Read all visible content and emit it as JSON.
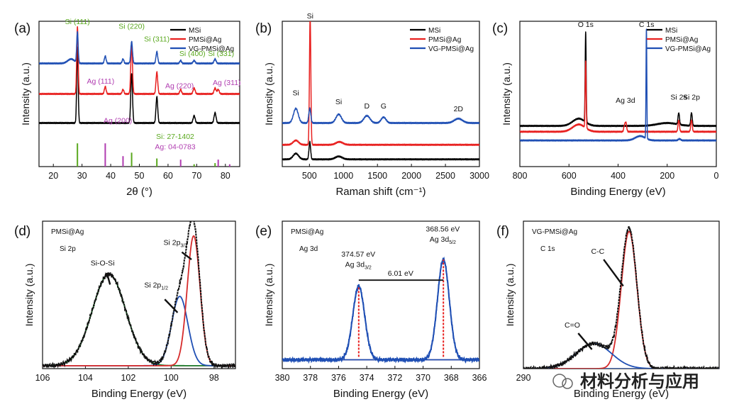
{
  "chart_data": [
    {
      "id": "a",
      "panel_label": "(a)",
      "type": "line",
      "xlabel": "2θ (°)",
      "ylabel": "Intensity (a.u.)",
      "xlim": [
        15,
        85
      ],
      "x_reversed": false,
      "xticks": [
        20,
        30,
        40,
        50,
        60,
        70,
        80
      ],
      "legend": {
        "position": "top-right",
        "entries": [
          {
            "name": "MSi",
            "color": "#000000"
          },
          {
            "name": "PMSi@Ag",
            "color": "#e8201f"
          },
          {
            "name": "VG-PMSi@Ag",
            "color": "#1f4fb4"
          }
        ]
      },
      "series": [
        {
          "name": "MSi",
          "color": "#000000",
          "baseline": 0.3,
          "peaks": [
            [
              28.4,
              0.52,
              0.25
            ],
            [
              47.3,
              0.34,
              0.3
            ],
            [
              56.1,
              0.18,
              0.3
            ],
            [
              69.1,
              0.05,
              0.35
            ],
            [
              76.4,
              0.07,
              0.35
            ]
          ]
        },
        {
          "name": "PMSi@Ag",
          "color": "#e8201f",
          "baseline": 0.5,
          "peaks": [
            [
              28.4,
              0.46,
              0.25
            ],
            [
              38.1,
              0.05,
              0.3
            ],
            [
              44.3,
              0.03,
              0.3
            ],
            [
              47.3,
              0.33,
              0.3
            ],
            [
              56.1,
              0.15,
              0.3
            ],
            [
              64.4,
              0.03,
              0.3
            ],
            [
              69.1,
              0.04,
              0.35
            ],
            [
              76.4,
              0.04,
              0.35
            ],
            [
              77.5,
              0.03,
              0.35
            ]
          ]
        },
        {
          "name": "VG-PMSi@Ag",
          "color": "#1f4fb4",
          "baseline": 0.71,
          "peaks": [
            [
              26.2,
              0.03,
              1.2
            ],
            [
              28.4,
              0.21,
              0.25
            ],
            [
              38.1,
              0.05,
              0.3
            ],
            [
              44.3,
              0.03,
              0.3
            ],
            [
              47.3,
              0.15,
              0.3
            ],
            [
              56.1,
              0.08,
              0.3
            ],
            [
              64.4,
              0.02,
              0.3
            ],
            [
              69.1,
              0.02,
              0.35
            ],
            [
              76.4,
              0.03,
              0.35
            ]
          ]
        }
      ],
      "reference_bars": [
        {
          "card": "Si: 27-1402",
          "color": "#5aa81e",
          "positions": [
            28.4,
            47.3,
            56.1,
            69.1,
            76.4
          ],
          "heights": [
            1.0,
            0.6,
            0.35,
            0.1,
            0.15
          ]
        },
        {
          "card": "Ag: 04-0783",
          "color": "#b03cb0",
          "positions": [
            38.1,
            44.3,
            64.4,
            77.5,
            81.5
          ],
          "heights": [
            1.0,
            0.45,
            0.3,
            0.3,
            0.1
          ]
        }
      ],
      "annotations": [
        {
          "text": "Si (111)",
          "color": "#5aa81e",
          "x": 28.4,
          "y": 0.98
        },
        {
          "text": "Si (220)",
          "color": "#5aa81e",
          "x": 47.3,
          "y": 0.95
        },
        {
          "text": "Si (311)",
          "color": "#5aa81e",
          "x": 56.1,
          "y": 0.86
        },
        {
          "text": "Si (400)",
          "color": "#5aa81e",
          "x": 68.5,
          "y": 0.76
        },
        {
          "text": "Si (331)",
          "color": "#5aa81e",
          "x": 78.5,
          "y": 0.76
        },
        {
          "text": "Ag (111)",
          "color": "#b03cb0",
          "x": 36.5,
          "y": 0.57
        },
        {
          "text": "Ag (220)",
          "color": "#b03cb0",
          "x": 64.0,
          "y": 0.54
        },
        {
          "text": "Ag (311)",
          "color": "#b03cb0",
          "x": 80.5,
          "y": 0.56
        },
        {
          "text": "Ag (200)",
          "color": "#b03cb0",
          "x": 42.5,
          "y": 0.3
        },
        {
          "text": "Si: 27-1402",
          "color": "#5aa81e",
          "x": 62.5,
          "y": 0.19
        },
        {
          "text": "Ag: 04-0783",
          "color": "#b03cb0",
          "x": 62.5,
          "y": 0.12
        }
      ]
    },
    {
      "id": "b",
      "panel_label": "(b)",
      "type": "line",
      "xlabel": "Raman shift (cm⁻¹)",
      "ylabel": "Intensity (a.u.)",
      "xlim": [
        100,
        3000
      ],
      "x_reversed": false,
      "xticks": [
        500,
        1000,
        1500,
        2000,
        2500,
        3000
      ],
      "legend": {
        "position": "top-right",
        "entries": [
          {
            "name": "MSi",
            "color": "#000000"
          },
          {
            "name": "PMSi@Ag",
            "color": "#e8201f"
          },
          {
            "name": "VG-PMSi@Ag",
            "color": "#1f4fb4"
          }
        ]
      },
      "series": [
        {
          "name": "MSi",
          "color": "#000000",
          "baseline": 0.05,
          "peaks": [
            [
              300,
              0.04,
              40
            ],
            [
              505,
              0.12,
              12
            ],
            [
              930,
              0.02,
              50
            ]
          ]
        },
        {
          "name": "PMSi@Ag",
          "color": "#e8201f",
          "baseline": 0.15,
          "peaks": [
            [
              300,
              0.03,
              40
            ],
            [
              510,
              0.88,
              10
            ],
            [
              940,
              0.02,
              50
            ]
          ]
        },
        {
          "name": "VG-PMSi@Ag",
          "color": "#1f4fb4",
          "baseline": 0.3,
          "peaks": [
            [
              300,
              0.1,
              35
            ],
            [
              505,
              0.1,
              15
            ],
            [
              930,
              0.06,
              40
            ],
            [
              1345,
              0.05,
              45
            ],
            [
              1590,
              0.04,
              35
            ],
            [
              2690,
              0.03,
              60
            ]
          ]
        }
      ],
      "annotations": [
        {
          "text": "Si",
          "color": "#111111",
          "x": 510,
          "y": 1.02
        },
        {
          "text": "Si",
          "color": "#111111",
          "x": 300,
          "y": 0.49
        },
        {
          "text": "Si",
          "color": "#111111",
          "x": 930,
          "y": 0.43
        },
        {
          "text": "D",
          "color": "#111111",
          "x": 1345,
          "y": 0.4
        },
        {
          "text": "G",
          "color": "#111111",
          "x": 1590,
          "y": 0.4
        },
        {
          "text": "2D",
          "color": "#111111",
          "x": 2690,
          "y": 0.38
        }
      ]
    },
    {
      "id": "c",
      "panel_label": "(c)",
      "type": "line",
      "xlabel": "Binding Energy (eV)",
      "ylabel": "Intensity (a.u.)",
      "xlim": [
        800,
        0
      ],
      "x_reversed": true,
      "xticks": [
        800,
        600,
        400,
        200,
        0
      ],
      "legend": {
        "position": "top-right",
        "entries": [
          {
            "name": "MSi",
            "color": "#000000"
          },
          {
            "name": "PMSi@Ag",
            "color": "#e8201f"
          },
          {
            "name": "VG-PMSi@Ag",
            "color": "#1f4fb4"
          }
        ]
      },
      "series": [
        {
          "name": "MSi",
          "color": "#000000",
          "baseline": 0.28,
          "peaks": [
            [
              532,
              0.62,
              2
            ],
            [
              560,
              0.05,
              25
            ],
            [
              153,
              0.08,
              3
            ],
            [
              101,
              0.09,
              3
            ],
            [
              200,
              0.02,
              40
            ]
          ]
        },
        {
          "name": "PMSi@Ag",
          "color": "#e8201f",
          "baseline": 0.24,
          "peaks": [
            [
              532,
              0.46,
              2
            ],
            [
              560,
              0.05,
              25
            ],
            [
              368,
              0.06,
              3
            ],
            [
              374,
              0.04,
              3
            ],
            [
              153,
              0.08,
              3
            ],
            [
              101,
              0.08,
              3
            ]
          ]
        },
        {
          "name": "VG-PMSi@Ag",
          "color": "#1f4fb4",
          "baseline": 0.18,
          "peaks": [
            [
              284.6,
              0.76,
              1.6
            ],
            [
              310,
              0.03,
              20
            ],
            [
              150,
              0.01,
              5
            ]
          ]
        }
      ],
      "annotations": [
        {
          "text": "O 1s",
          "color": "#111111",
          "x": 532,
          "y": 0.96
        },
        {
          "text": "C 1s",
          "color": "#111111",
          "x": 284,
          "y": 0.96
        },
        {
          "text": "Ag 3d",
          "color": "#111111",
          "x": 370,
          "y": 0.44
        },
        {
          "text": "Si 2s",
          "color": "#111111",
          "x": 153,
          "y": 0.46
        },
        {
          "text": "Si 2p",
          "color": "#111111",
          "x": 101,
          "y": 0.46
        }
      ]
    },
    {
      "id": "d",
      "panel_label": "(d)",
      "type": "line",
      "sample": "PMSi@Ag",
      "core_level": "Si 2p",
      "xlabel": "Binding Energy (eV)",
      "ylabel": "Intensity (a.u.)",
      "xlim": [
        106,
        97
      ],
      "x_reversed": true,
      "xticks": [
        106,
        104,
        102,
        100,
        98
      ],
      "background": 0.02,
      "components": [
        {
          "name": "Si-O-Si",
          "center": 102.9,
          "amplitude": 0.62,
          "sigma": 0.78,
          "color": "#1c7c2c",
          "fill": "#2e7d32"
        },
        {
          "name": "Si 2p1/2",
          "center": 99.6,
          "amplitude": 0.47,
          "sigma": 0.38,
          "color": "#1f4fb4"
        },
        {
          "name": "Si 2p3/2",
          "center": 98.95,
          "amplitude": 0.88,
          "sigma": 0.3,
          "color": "#d62b2b"
        }
      ],
      "envelope_color": "#111111",
      "baseline_color": "#d62b2b",
      "annotations": [
        {
          "text": "Si-O-Si",
          "color": "#111111",
          "x": 103.2,
          "y": 0.7
        },
        {
          "text": "Si 2p",
          "sub": "1/2",
          "color": "#111111",
          "x": 100.7,
          "y": 0.55
        },
        {
          "text": "Si 2p",
          "sub": "3/2",
          "color": "#111111",
          "x": 99.8,
          "y": 0.84
        }
      ]
    },
    {
      "id": "e",
      "panel_label": "(e)",
      "type": "line",
      "sample": "PMSi@Ag",
      "core_level": "Ag 3d",
      "xlabel": "Binding Energy (eV)",
      "ylabel": "Intensity (a.u.)",
      "xlim": [
        380,
        366
      ],
      "x_reversed": true,
      "xticks": [
        380,
        378,
        376,
        374,
        372,
        370,
        368,
        366
      ],
      "background": 0.06,
      "components": [
        {
          "name": "Ag 3d5/2",
          "center": 368.56,
          "amplitude": 0.68,
          "sigma": 0.42,
          "color": "#1f4fb4"
        },
        {
          "name": "Ag 3d3/2",
          "center": 374.57,
          "amplitude": 0.5,
          "sigma": 0.42,
          "color": "#1f4fb4"
        }
      ],
      "envelope_color": "#1f4fb4",
      "baseline_color": "#d62b2b",
      "splitting_eV": "6.01 eV",
      "annotations": [
        {
          "text": "374.57 eV",
          "color": "#111111",
          "x": 374.6,
          "y": 0.76
        },
        {
          "text": "Ag 3d",
          "sub": "3/2",
          "color": "#111111",
          "x": 374.6,
          "y": 0.69
        },
        {
          "text": "368.56 eV",
          "color": "#111111",
          "x": 368.6,
          "y": 0.93
        },
        {
          "text": "Ag 3d",
          "sub": "5/2",
          "color": "#111111",
          "x": 368.6,
          "y": 0.86
        },
        {
          "text": "6.01 eV",
          "color": "#111111",
          "x": 371.6,
          "y": 0.63
        }
      ]
    },
    {
      "id": "f",
      "panel_label": "(f)",
      "type": "line",
      "sample": "VG-PMSi@Ag",
      "core_level": "C 1s",
      "xlabel": "Binding Energy (eV)",
      "ylabel": "Intensity (a.u.)",
      "xlim": [
        290,
        280
      ],
      "x_reversed": true,
      "xticks": [
        290
      ],
      "background": 0.0,
      "components": [
        {
          "name": "C-C",
          "center": 284.6,
          "amplitude": 0.93,
          "sigma": 0.4,
          "color": "#d62b2b"
        },
        {
          "name": "C=O",
          "center": 286.4,
          "amplitude": 0.17,
          "sigma": 0.9,
          "color": "#1f4fb4"
        }
      ],
      "envelope_color": "#111111",
      "baseline_color": "#1f4fb4",
      "annotations": [
        {
          "text": "C-C",
          "color": "#111111",
          "x": 286.2,
          "y": 0.78
        },
        {
          "text": "C=O",
          "color": "#111111",
          "x": 287.5,
          "y": 0.28
        }
      ]
    }
  ],
  "watermark": {
    "text": "材料分析与应用"
  }
}
